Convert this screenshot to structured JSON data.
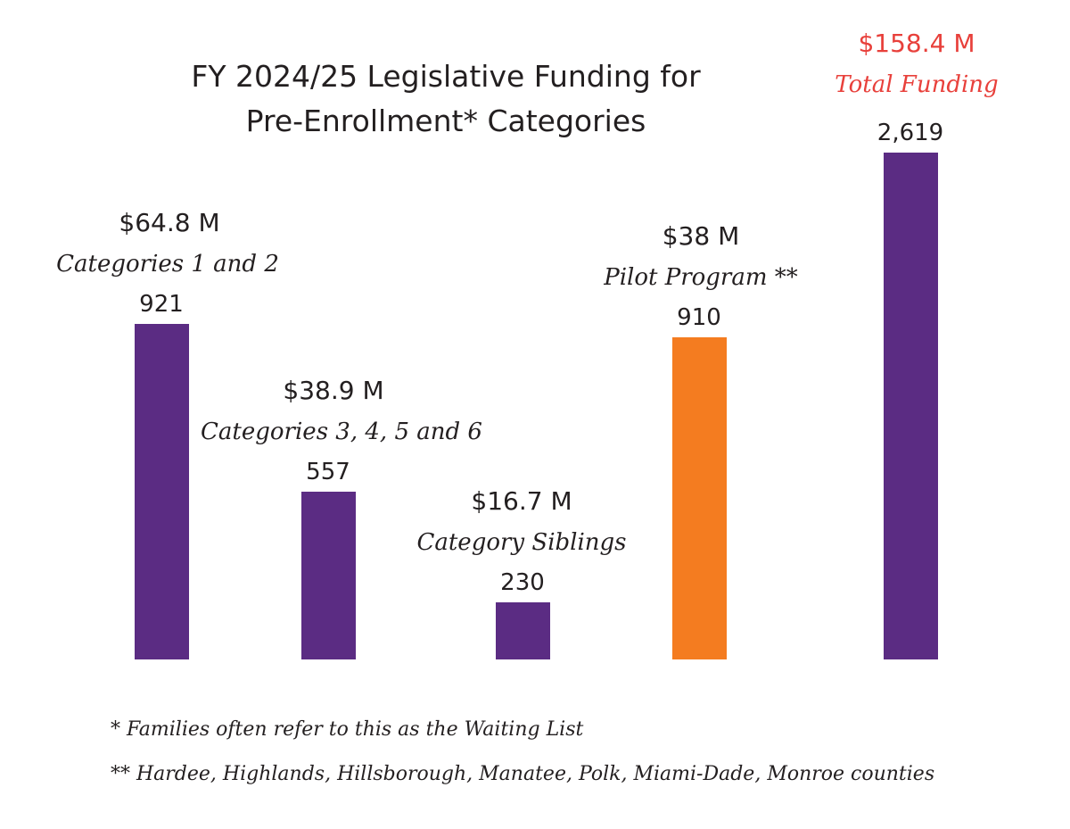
{
  "chart_data": {
    "type": "bar",
    "title": "FY 2024/25 Legislative Funding for Pre-Enrollment* Categories",
    "title_lines": [
      "FY 2024/25 Legislative Funding for",
      "Pre-Enrollment* Categories"
    ],
    "xlabel": "",
    "ylabel": "",
    "grid": false,
    "categories": [
      "Categories 1 and 2",
      "Categories 3, 4, 5 and 6",
      "Category Siblings",
      "Pilot Program **",
      "Total Funding"
    ],
    "values": [
      921,
      557,
      230,
      910,
      2619
    ],
    "funding_labels": [
      "$64.8 M",
      "$38.9 M",
      "$16.7 M",
      "$38 M",
      "$158.4 M"
    ],
    "count_labels": [
      "921",
      "557",
      "230",
      "910",
      "2,619"
    ],
    "bar_colors": [
      "#5b2c83",
      "#5b2c83",
      "#5b2c83",
      "#f47c20",
      "#5b2c83"
    ],
    "highlight_color": "#e8403b",
    "footnotes": [
      "* Families often refer to this as the Waiting List",
      "** Hardee, Highlands, Hillsborough, Manatee, Polk, Miami-Dade, Monroe counties"
    ]
  }
}
